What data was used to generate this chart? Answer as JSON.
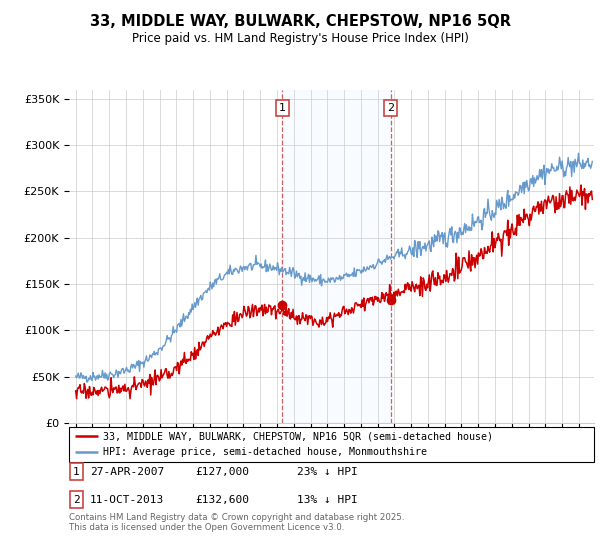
{
  "title": "33, MIDDLE WAY, BULWARK, CHEPSTOW, NP16 5QR",
  "subtitle": "Price paid vs. HM Land Registry's House Price Index (HPI)",
  "ylabel_ticks": [
    "£0",
    "£50K",
    "£100K",
    "£150K",
    "£200K",
    "£250K",
    "£300K",
    "£350K"
  ],
  "ytick_vals": [
    0,
    50000,
    100000,
    150000,
    200000,
    250000,
    300000,
    350000
  ],
  "ylim": [
    0,
    360000
  ],
  "sale1_date": "27-APR-2007",
  "sale1_price": 127000,
  "sale1_price_fmt": "£127,000",
  "sale1_hpi": "23% ↓ HPI",
  "sale2_date": "11-OCT-2013",
  "sale2_price": 132600,
  "sale2_price_fmt": "£132,600",
  "sale2_hpi": "13% ↓ HPI",
  "legend_line1": "33, MIDDLE WAY, BULWARK, CHEPSTOW, NP16 5QR (semi-detached house)",
  "legend_line2": "HPI: Average price, semi-detached house, Monmouthshire",
  "footnote1": "Contains HM Land Registry data © Crown copyright and database right 2025.",
  "footnote2": "This data is licensed under the Open Government Licence v3.0.",
  "red_color": "#cc0000",
  "blue_color": "#6699cc",
  "vline_color": "#cc4444",
  "shade_color": "#ddeeff",
  "grid_color": "#cccccc",
  "sale1_x": 2007.32,
  "sale2_x": 2013.78,
  "xstart": 1995,
  "xend": 2025,
  "seed_hpi": 42,
  "seed_red": 17
}
